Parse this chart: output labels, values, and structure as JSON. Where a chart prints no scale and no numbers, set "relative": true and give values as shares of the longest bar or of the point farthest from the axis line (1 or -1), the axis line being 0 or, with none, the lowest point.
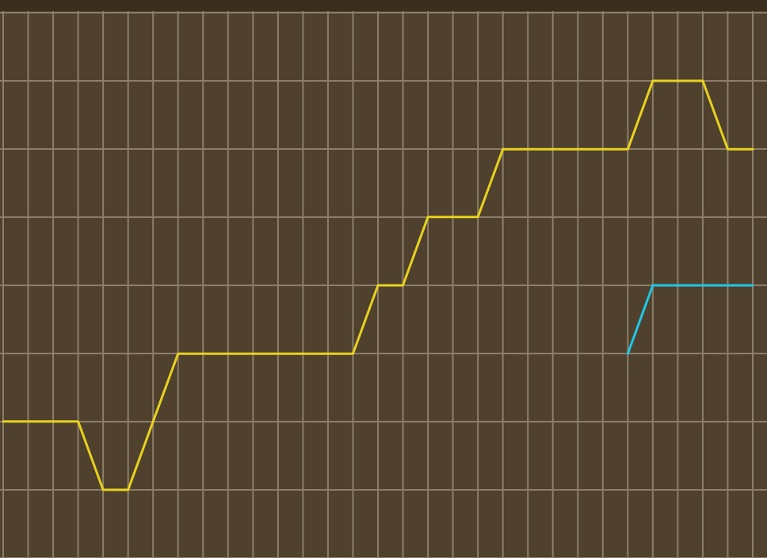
{
  "chart_data": {
    "type": "line",
    "relative": true,
    "grid": true,
    "marker": "none",
    "line_style": "solid",
    "categories": [
      null,
      null,
      null,
      null,
      null,
      null,
      null,
      null,
      null,
      null,
      null,
      null,
      null,
      null,
      null,
      null,
      null,
      null,
      null,
      null,
      null,
      null,
      null,
      null,
      null,
      null,
      null,
      null,
      null,
      null,
      null
    ],
    "series": [
      {
        "color": "#e8d21e",
        "values": [
          0.167,
          0.167,
          0.167,
          0.167,
          0,
          0,
          0.167,
          0.333,
          0.333,
          0.333,
          0.333,
          0.333,
          0.333,
          0.333,
          0.333,
          0.5,
          0.5,
          0.667,
          0.667,
          0.667,
          0.833,
          0.833,
          0.833,
          0.833,
          0.833,
          0.833,
          1,
          1,
          1,
          0.833,
          0.833
        ]
      },
      {
        "color": "#1ec8e6",
        "values": [
          null,
          null,
          null,
          null,
          null,
          null,
          null,
          null,
          null,
          null,
          null,
          null,
          null,
          null,
          null,
          null,
          null,
          null,
          null,
          null,
          null,
          null,
          null,
          null,
          null,
          0.333,
          0.5,
          0.5,
          0.5,
          0.5,
          0.5
        ]
      }
    ]
  }
}
